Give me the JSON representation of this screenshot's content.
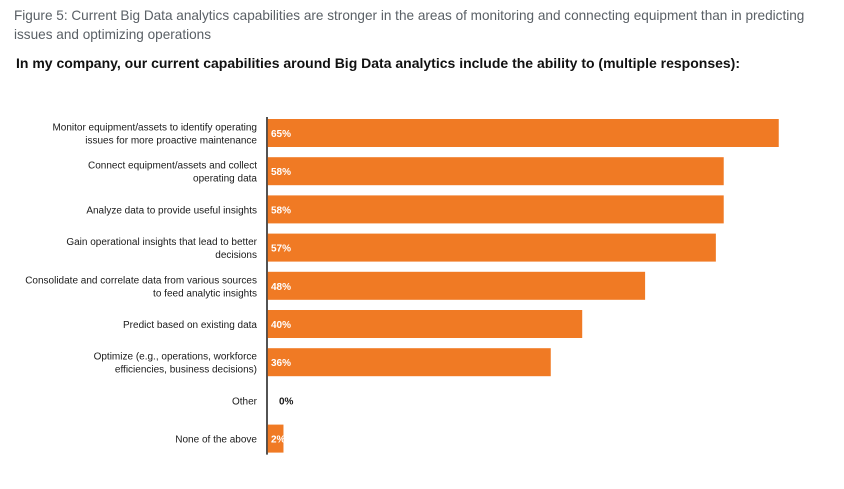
{
  "figure_title": "Figure 5: Current Big Data analytics capabilities are stronger in the areas of monitoring and connecting equipment than in predicting issues and optimizing operations",
  "chart_data": {
    "type": "bar",
    "orientation": "horizontal",
    "title": "In my company, our current capabilities around Big Data analytics include the ability to (multiple responses):",
    "categories": [
      [
        "Monitor equipment/assets to identify operating",
        "issues for more proactive maintenance"
      ],
      [
        "Connect equipment/assets and collect",
        "operating data"
      ],
      [
        "Analyze data to provide useful insights"
      ],
      [
        "Gain operational insights that lead to better",
        "decisions"
      ],
      [
        "Consolidate and correlate data from various sources",
        "to feed analytic insights"
      ],
      [
        "Predict based on existing data"
      ],
      [
        "Optimize (e.g., operations, workforce",
        "efficiencies, business decisions)"
      ],
      [
        "Other"
      ],
      [
        "None of the above"
      ]
    ],
    "values": [
      65,
      58,
      58,
      57,
      48,
      40,
      36,
      0,
      2
    ],
    "value_labels": [
      "65%",
      "58%",
      "58%",
      "57%",
      "48%",
      "40%",
      "36%",
      "0%",
      "2%"
    ],
    "xlim": [
      0,
      60
    ],
    "bar_color": "#f07a24",
    "label_color_inside": "#ffffff",
    "label_color_outside": "#1a1a1a",
    "axis_color": "#1a1a1a",
    "grid": false,
    "legend": "none"
  }
}
